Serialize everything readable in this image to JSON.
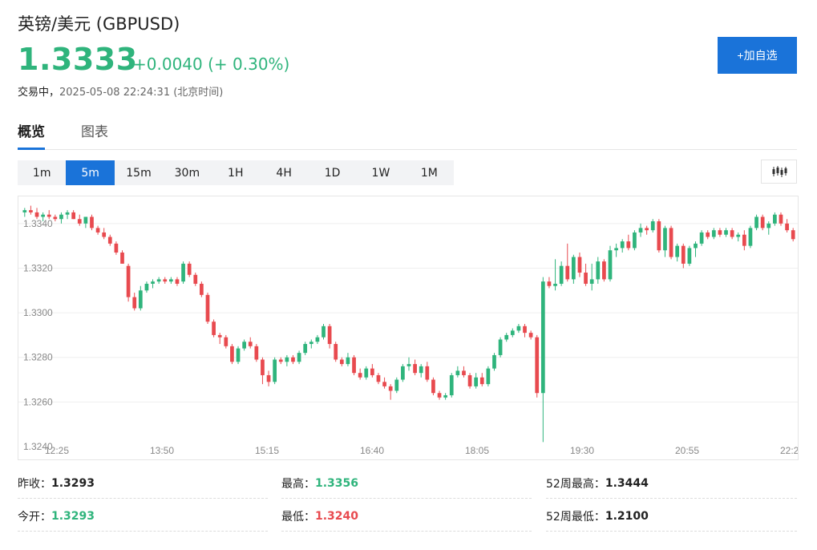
{
  "header": {
    "title": "英镑/美元 (GBPUSD)",
    "price": "1.3333",
    "change": "+0.0040 (+ 0.30%)",
    "state": "交易中，",
    "timestamp": "2025-05-08 22:24:31 (北京时间)",
    "watch_button": "+加自选"
  },
  "tabs": [
    {
      "label": "概览",
      "active": true
    },
    {
      "label": "图表",
      "active": false
    }
  ],
  "intervals": [
    "1m",
    "5m",
    "15m",
    "30m",
    "1H",
    "4H",
    "1D",
    "1W",
    "1M"
  ],
  "active_interval": "5m",
  "chart_type_icon": "candlestick-icon",
  "colors": {
    "up": "#2fb47c",
    "down": "#e84a4f",
    "accent": "#1a73d9"
  },
  "chart_data": {
    "type": "candlestick",
    "y_ticks": [
      "1.3340",
      "1.3320",
      "1.3300",
      "1.3280",
      "1.3260",
      "1.3240"
    ],
    "ylim": [
      1.324,
      1.335
    ],
    "x_ticks": [
      "12:25",
      "13:50",
      "15:15",
      "16:40",
      "18:05",
      "19:30",
      "20:55",
      "22:2"
    ],
    "candles": [
      [
        1.3345,
        1.3347,
        1.3343,
        1.3346
      ],
      [
        1.3346,
        1.3348,
        1.3344,
        1.3345
      ],
      [
        1.3345,
        1.3347,
        1.3342,
        1.3343
      ],
      [
        1.3343,
        1.3345,
        1.3341,
        1.3344
      ],
      [
        1.3344,
        1.3346,
        1.3342,
        1.3343
      ],
      [
        1.3343,
        1.3344,
        1.3341,
        1.3342
      ],
      [
        1.3342,
        1.3345,
        1.334,
        1.3344
      ],
      [
        1.3344,
        1.3346,
        1.3342,
        1.3345
      ],
      [
        1.3345,
        1.3346,
        1.3342,
        1.3342
      ],
      [
        1.3342,
        1.3344,
        1.3339,
        1.334
      ],
      [
        1.334,
        1.3343,
        1.3338,
        1.3343
      ],
      [
        1.3343,
        1.3344,
        1.3337,
        1.3338
      ],
      [
        1.3338,
        1.3339,
        1.3335,
        1.3336
      ],
      [
        1.3336,
        1.3338,
        1.3333,
        1.3334
      ],
      [
        1.3334,
        1.3335,
        1.333,
        1.3331
      ],
      [
        1.3331,
        1.3332,
        1.3326,
        1.3327
      ],
      [
        1.3327,
        1.3328,
        1.3322,
        1.3322
      ],
      [
        1.3321,
        1.3322,
        1.3305,
        1.3307
      ],
      [
        1.3307,
        1.3309,
        1.3301,
        1.3302
      ],
      [
        1.3302,
        1.3312,
        1.3301,
        1.331
      ],
      [
        1.331,
        1.3314,
        1.3309,
        1.3313
      ],
      [
        1.3313,
        1.3315,
        1.3311,
        1.3314
      ],
      [
        1.3314,
        1.3316,
        1.3313,
        1.3315
      ],
      [
        1.3315,
        1.3316,
        1.3313,
        1.3314
      ],
      [
        1.3314,
        1.3316,
        1.3313,
        1.3315
      ],
      [
        1.3315,
        1.3316,
        1.3312,
        1.3313
      ],
      [
        1.3314,
        1.3323,
        1.3313,
        1.3322
      ],
      [
        1.3322,
        1.3323,
        1.3316,
        1.3317
      ],
      [
        1.3317,
        1.3318,
        1.3312,
        1.3313
      ],
      [
        1.3313,
        1.3314,
        1.3307,
        1.3308
      ],
      [
        1.3308,
        1.3309,
        1.3295,
        1.3296
      ],
      [
        1.3296,
        1.3297,
        1.3289,
        1.329
      ],
      [
        1.329,
        1.3291,
        1.3286,
        1.3289
      ],
      [
        1.3289,
        1.329,
        1.3284,
        1.3285
      ],
      [
        1.3285,
        1.3286,
        1.3277,
        1.3278
      ],
      [
        1.3278,
        1.3285,
        1.3277,
        1.3284
      ],
      [
        1.3284,
        1.3288,
        1.3283,
        1.3287
      ],
      [
        1.3287,
        1.3289,
        1.3284,
        1.3285
      ],
      [
        1.3285,
        1.3286,
        1.3278,
        1.3279
      ],
      [
        1.3279,
        1.328,
        1.3268,
        1.3272
      ],
      [
        1.3272,
        1.3274,
        1.3267,
        1.3269
      ],
      [
        1.3269,
        1.328,
        1.3268,
        1.3279
      ],
      [
        1.3279,
        1.328,
        1.3277,
        1.3278
      ],
      [
        1.3278,
        1.3281,
        1.3276,
        1.328
      ],
      [
        1.328,
        1.3281,
        1.3277,
        1.3278
      ],
      [
        1.3278,
        1.3283,
        1.3277,
        1.3282
      ],
      [
        1.3282,
        1.3287,
        1.3281,
        1.3286
      ],
      [
        1.3286,
        1.3288,
        1.3284,
        1.3287
      ],
      [
        1.3287,
        1.329,
        1.3286,
        1.3289
      ],
      [
        1.3289,
        1.3295,
        1.3288,
        1.3294
      ],
      [
        1.3294,
        1.3295,
        1.3284,
        1.3286
      ],
      [
        1.3286,
        1.3287,
        1.3278,
        1.3279
      ],
      [
        1.3279,
        1.328,
        1.3276,
        1.3277
      ],
      [
        1.3277,
        1.3282,
        1.3276,
        1.328
      ],
      [
        1.328,
        1.3281,
        1.3272,
        1.3273
      ],
      [
        1.3273,
        1.3275,
        1.327,
        1.3271
      ],
      [
        1.3271,
        1.3276,
        1.327,
        1.3275
      ],
      [
        1.3275,
        1.3277,
        1.3271,
        1.3272
      ],
      [
        1.3272,
        1.3273,
        1.3268,
        1.3269
      ],
      [
        1.3269,
        1.3271,
        1.3266,
        1.3267
      ],
      [
        1.3267,
        1.3268,
        1.3261,
        1.3265
      ],
      [
        1.3265,
        1.3271,
        1.3264,
        1.327
      ],
      [
        1.327,
        1.3277,
        1.3269,
        1.3276
      ],
      [
        1.3276,
        1.328,
        1.3274,
        1.3277
      ],
      [
        1.3277,
        1.3279,
        1.3272,
        1.3273
      ],
      [
        1.3273,
        1.3277,
        1.3271,
        1.3276
      ],
      [
        1.3276,
        1.3278,
        1.3269,
        1.327
      ],
      [
        1.327,
        1.3271,
        1.3263,
        1.3264
      ],
      [
        1.3264,
        1.3265,
        1.3261,
        1.3262
      ],
      [
        1.3262,
        1.3264,
        1.3261,
        1.3263
      ],
      [
        1.3263,
        1.3273,
        1.3262,
        1.3272
      ],
      [
        1.3272,
        1.3276,
        1.3271,
        1.3274
      ],
      [
        1.3274,
        1.3276,
        1.3271,
        1.3272
      ],
      [
        1.3272,
        1.3273,
        1.3266,
        1.3267
      ],
      [
        1.3267,
        1.3273,
        1.3266,
        1.3271
      ],
      [
        1.3271,
        1.3273,
        1.3267,
        1.3268
      ],
      [
        1.3268,
        1.3276,
        1.3267,
        1.3275
      ],
      [
        1.3275,
        1.3282,
        1.3274,
        1.3281
      ],
      [
        1.3281,
        1.3289,
        1.328,
        1.3288
      ],
      [
        1.3288,
        1.3291,
        1.3287,
        1.329
      ],
      [
        1.329,
        1.3293,
        1.3289,
        1.3292
      ],
      [
        1.3292,
        1.3295,
        1.3291,
        1.3294
      ],
      [
        1.3294,
        1.3295,
        1.3289,
        1.3291
      ],
      [
        1.3291,
        1.3292,
        1.3288,
        1.3289
      ],
      [
        1.3289,
        1.329,
        1.3262,
        1.3264
      ],
      [
        1.3264,
        1.3316,
        1.3242,
        1.3314
      ],
      [
        1.3314,
        1.3316,
        1.3311,
        1.3312
      ],
      [
        1.3312,
        1.3324,
        1.331,
        1.3313
      ],
      [
        1.3313,
        1.3323,
        1.3312,
        1.3321
      ],
      [
        1.3321,
        1.3331,
        1.3314,
        1.3315
      ],
      [
        1.3315,
        1.3326,
        1.3313,
        1.3325
      ],
      [
        1.3325,
        1.3327,
        1.3316,
        1.3318
      ],
      [
        1.3318,
        1.3322,
        1.3312,
        1.3313
      ],
      [
        1.3313,
        1.3322,
        1.331,
        1.3315
      ],
      [
        1.3315,
        1.3325,
        1.3313,
        1.3323
      ],
      [
        1.3323,
        1.3324,
        1.3314,
        1.3315
      ],
      [
        1.3315,
        1.333,
        1.3314,
        1.3328
      ],
      [
        1.3328,
        1.3331,
        1.3325,
        1.3329
      ],
      [
        1.3329,
        1.3333,
        1.3327,
        1.3332
      ],
      [
        1.3332,
        1.3335,
        1.3328,
        1.3329
      ],
      [
        1.3329,
        1.3337,
        1.3328,
        1.3336
      ],
      [
        1.3336,
        1.334,
        1.3334,
        1.3338
      ],
      [
        1.3338,
        1.3339,
        1.3335,
        1.3337
      ],
      [
        1.3337,
        1.3342,
        1.3336,
        1.3341
      ],
      [
        1.3341,
        1.3342,
        1.3327,
        1.3328
      ],
      [
        1.3328,
        1.3339,
        1.3325,
        1.3338
      ],
      [
        1.3338,
        1.3339,
        1.3324,
        1.3325
      ],
      [
        1.3325,
        1.3331,
        1.3323,
        1.333
      ],
      [
        1.333,
        1.3331,
        1.332,
        1.3322
      ],
      [
        1.3322,
        1.333,
        1.3321,
        1.3329
      ],
      [
        1.3329,
        1.3332,
        1.3325,
        1.3331
      ],
      [
        1.3331,
        1.3337,
        1.333,
        1.3336
      ],
      [
        1.3336,
        1.3337,
        1.3333,
        1.3334
      ],
      [
        1.3334,
        1.3338,
        1.3333,
        1.3337
      ],
      [
        1.3337,
        1.3338,
        1.3334,
        1.3335
      ],
      [
        1.3335,
        1.3338,
        1.3334,
        1.3337
      ],
      [
        1.3337,
        1.3338,
        1.3333,
        1.3334
      ],
      [
        1.3334,
        1.3336,
        1.3332,
        1.3335
      ],
      [
        1.3335,
        1.3337,
        1.3328,
        1.333
      ],
      [
        1.333,
        1.3339,
        1.3329,
        1.3338
      ],
      [
        1.3338,
        1.3344,
        1.3337,
        1.3343
      ],
      [
        1.3343,
        1.3344,
        1.3337,
        1.3338
      ],
      [
        1.3338,
        1.3341,
        1.3335,
        1.334
      ],
      [
        1.334,
        1.3345,
        1.3339,
        1.3344
      ],
      [
        1.3344,
        1.3345,
        1.3339,
        1.334
      ],
      [
        1.334,
        1.3342,
        1.3336,
        1.3337
      ],
      [
        1.3337,
        1.3338,
        1.3332,
        1.3333
      ]
    ]
  },
  "stats": [
    {
      "label": "昨收：",
      "value": "1.3293",
      "tone": "neutral"
    },
    {
      "label": "最高：",
      "value": "1.3356",
      "tone": "up"
    },
    {
      "label": "52周最高：",
      "value": "1.3444",
      "tone": "neutral"
    },
    {
      "label": "今开：",
      "value": "1.3293",
      "tone": "up"
    },
    {
      "label": "最低：",
      "value": "1.3240",
      "tone": "down"
    },
    {
      "label": "52周最低：",
      "value": "1.2100",
      "tone": "neutral"
    }
  ]
}
